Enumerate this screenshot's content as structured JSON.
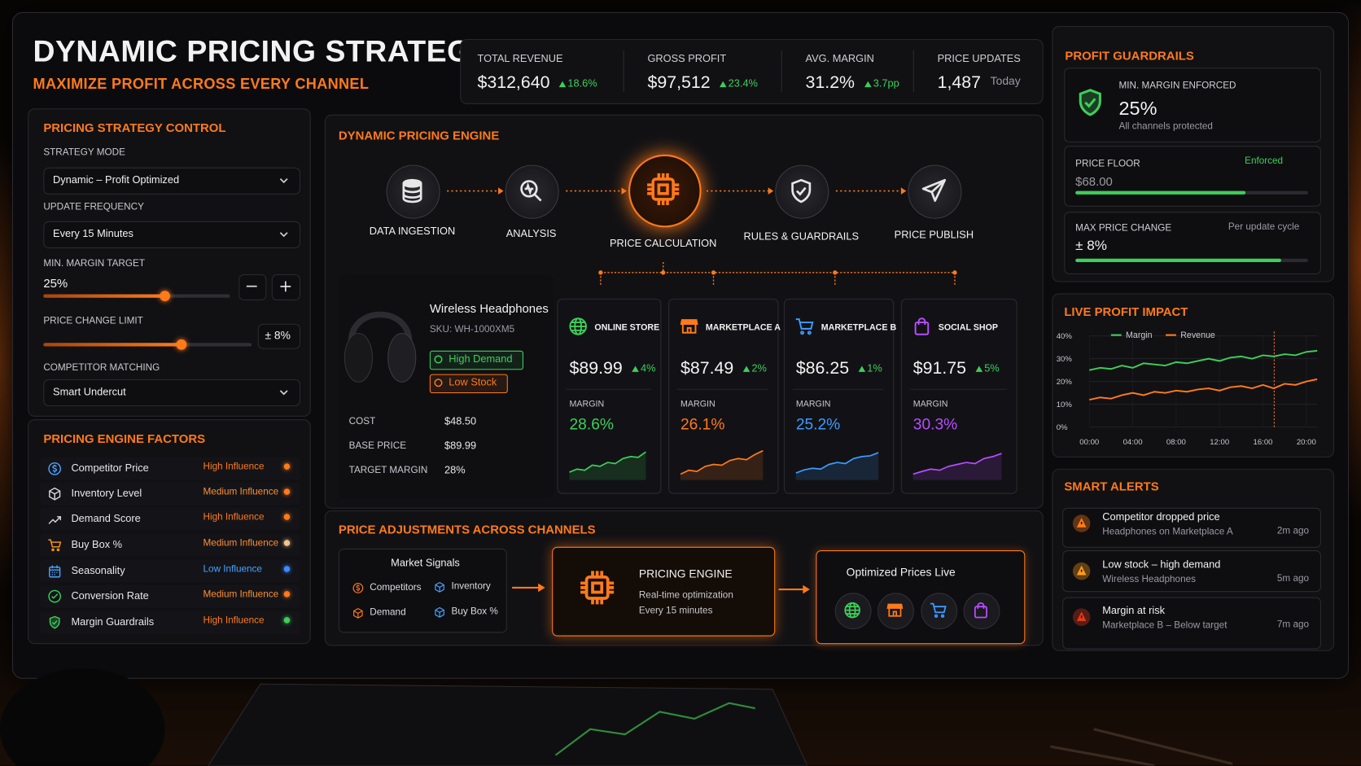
{
  "header": {
    "title": "DYNAMIC PRICING STRATEGY",
    "subtitle": "MAXIMIZE PROFIT ACROSS EVERY CHANNEL"
  },
  "kpis": [
    {
      "label": "TOTAL REVENUE",
      "value": "$312,640",
      "change": "18.6%"
    },
    {
      "label": "GROSS PROFIT",
      "value": "$97,512",
      "change": "23.4%"
    },
    {
      "label": "AVG. MARGIN",
      "value": "31.2%",
      "change": "3.7pp"
    },
    {
      "label": "PRICE UPDATES",
      "value": "1,487",
      "note": "Today"
    }
  ],
  "strategy_control": {
    "title": "PRICING STRATEGY CONTROL",
    "strategy_mode": {
      "label": "STRATEGY MODE",
      "value": "Dynamic – Profit Optimized"
    },
    "update_frequency": {
      "label": "UPDATE FREQUENCY",
      "value": "Every 15 Minutes"
    },
    "min_margin": {
      "label": "MIN. MARGIN TARGET",
      "value": "25%"
    },
    "price_change_limit": {
      "label": "PRICE CHANGE LIMIT",
      "value": "± 8%"
    },
    "competitor_matching": {
      "label": "COMPETITOR MATCHING",
      "value": "Smart Undercut"
    }
  },
  "factors": {
    "title": "PRICING ENGINE FACTORS",
    "items": [
      {
        "name": "Competitor Price",
        "influence": "High Influence",
        "influence_color": "#ff7a1a",
        "dot_color": "#ff7a1a",
        "icon_color": "#4aa3ff"
      },
      {
        "name": "Inventory Level",
        "influence": "Medium Influence",
        "influence_color": "#ff8f33",
        "dot_color": "#ff7a1a",
        "icon_color": "#d8d8d8"
      },
      {
        "name": "Demand Score",
        "influence": "High Influence",
        "influence_color": "#ff7a1a",
        "dot_color": "#ff7a1a",
        "icon_color": "#d8d8d8"
      },
      {
        "name": "Buy Box %",
        "influence": "Medium Influence",
        "influence_color": "#ff8f33",
        "dot_color": "#f3c48a",
        "icon_color": "#ff9a1a"
      },
      {
        "name": "Seasonality",
        "influence": "Low Influence",
        "influence_color": "#4aa3ff",
        "dot_color": "#3d8bff",
        "icon_color": "#4aa3ff"
      },
      {
        "name": "Conversion Rate",
        "influence": "Medium Influence",
        "influence_color": "#ff8f33",
        "dot_color": "#ff7a1a",
        "icon_color": "#3ecf5a"
      },
      {
        "name": "Margin Guardrails",
        "influence": "High Influence",
        "influence_color": "#ff7a1a",
        "dot_color": "#3ecf5a",
        "icon_color": "#3ecf5a"
      }
    ]
  },
  "engine": {
    "title": "DYNAMIC PRICING ENGINE",
    "steps": [
      "DATA INGESTION",
      "ANALYSIS",
      "PRICE CALCULATION",
      "RULES & GUARDRAILS",
      "PRICE PUBLISH"
    ]
  },
  "product": {
    "name": "Wireless Headphones",
    "sku": "SKU: WH-1000XM5",
    "tags": [
      "High Demand",
      "Low Stock"
    ],
    "rows": [
      [
        "COST",
        "$48.50"
      ],
      [
        "BASE PRICE",
        "$89.99"
      ],
      [
        "TARGET MARGIN",
        "28%"
      ]
    ]
  },
  "channels": [
    {
      "name": "ONLINE STORE",
      "price": "$89.99",
      "change": "4%",
      "margin_label": "MARGIN",
      "margin": "28.6%",
      "color": "#3ecf5a",
      "trend": [
        20,
        28,
        25,
        38,
        35,
        45,
        42,
        55,
        60,
        58,
        72
      ]
    },
    {
      "name": "MARKETPLACE A",
      "price": "$87.49",
      "change": "2%",
      "margin_label": "MARGIN",
      "margin": "26.1%",
      "color": "#ff7a1a",
      "trend": [
        15,
        25,
        22,
        35,
        40,
        38,
        50,
        55,
        52,
        65,
        75
      ]
    },
    {
      "name": "MARKETPLACE B",
      "price": "$86.25",
      "change": "1%",
      "margin_label": "MARGIN",
      "margin": "25.2%",
      "color": "#3d9bff",
      "trend": [
        18,
        26,
        30,
        28,
        40,
        45,
        42,
        55,
        60,
        62,
        70
      ]
    },
    {
      "name": "SOCIAL SHOP",
      "price": "$91.75",
      "change": "5%",
      "margin_label": "MARGIN",
      "margin": "30.3%",
      "color": "#b84dff",
      "trend": [
        15,
        22,
        28,
        25,
        35,
        40,
        45,
        42,
        55,
        60,
        68
      ]
    }
  ],
  "adjustments": {
    "title": "PRICE ADJUSTMENTS ACROSS CHANNELS",
    "signals_title": "Market Signals",
    "signals": [
      "Competitors",
      "Inventory",
      "Demand",
      "Buy Box %"
    ],
    "engine_title": "PRICING ENGINE",
    "engine_line1": "Real-time optimization",
    "engine_line2": "Every 15 minutes",
    "live_title": "Optimized Prices Live"
  },
  "guardrails": {
    "title": "PROFIT GUARDRAILS",
    "min_margin": {
      "label": "MIN. MARGIN ENFORCED",
      "value": "25%",
      "note": "All channels protected"
    },
    "price_floor": {
      "label": "PRICE FLOOR",
      "status": "Enforced",
      "value": "$68.00"
    },
    "max_change": {
      "label": "MAX PRICE CHANGE",
      "note": "Per update cycle",
      "value": "± 8%"
    }
  },
  "chart_data": {
    "type": "line",
    "title": "LIVE PROFIT IMPACT",
    "x": [
      0,
      1,
      2,
      3,
      4,
      5,
      6,
      7,
      8,
      9,
      10,
      11,
      12,
      13,
      14,
      15,
      16,
      17,
      18,
      19,
      20,
      21
    ],
    "xlim": [
      0,
      21
    ],
    "xticks": [
      {
        "value": 0,
        "label": "00:00"
      },
      {
        "value": 4,
        "label": "04:00"
      },
      {
        "value": 8,
        "label": "08:00"
      },
      {
        "value": 12,
        "label": "12:00"
      },
      {
        "value": 16,
        "label": "16:00"
      },
      {
        "value": 20,
        "label": "20:00"
      }
    ],
    "ylim": [
      0,
      40
    ],
    "yticks": [
      {
        "value": 0,
        "label": "0%"
      },
      {
        "value": 10,
        "label": "10%"
      },
      {
        "value": 20,
        "label": "20%"
      },
      {
        "value": 30,
        "label": "30%"
      },
      {
        "value": 40,
        "label": "40%"
      }
    ],
    "grid": true,
    "series": [
      {
        "name": "Margin",
        "color": "#3ecf5a",
        "values": [
          25,
          26,
          25.5,
          27,
          26,
          28,
          27.5,
          27,
          28.5,
          28,
          29,
          30,
          29,
          30.5,
          31,
          30,
          31.5,
          31,
          32,
          31.5,
          33,
          33.5
        ]
      },
      {
        "name": "Revenue",
        "color": "#ff7a1a",
        "values": [
          12,
          13,
          12.5,
          14,
          15,
          14,
          15.5,
          15,
          16,
          15.5,
          16.5,
          17,
          16,
          17.5,
          18,
          17,
          18.5,
          17,
          19,
          18.5,
          20,
          21
        ]
      }
    ]
  },
  "alerts": {
    "title": "SMART ALERTS",
    "items": [
      {
        "title": "Competitor dropped price",
        "detail": "Headphones on Marketplace A",
        "time": "2m ago",
        "color": "#ff7a1a"
      },
      {
        "title": "Low stock – high demand",
        "detail": "Wireless Headphones",
        "time": "5m ago",
        "color": "#ff9a1a"
      },
      {
        "title": "Margin at risk",
        "detail": "Marketplace B – Below target",
        "time": "7m ago",
        "color": "#e0391a"
      }
    ]
  }
}
